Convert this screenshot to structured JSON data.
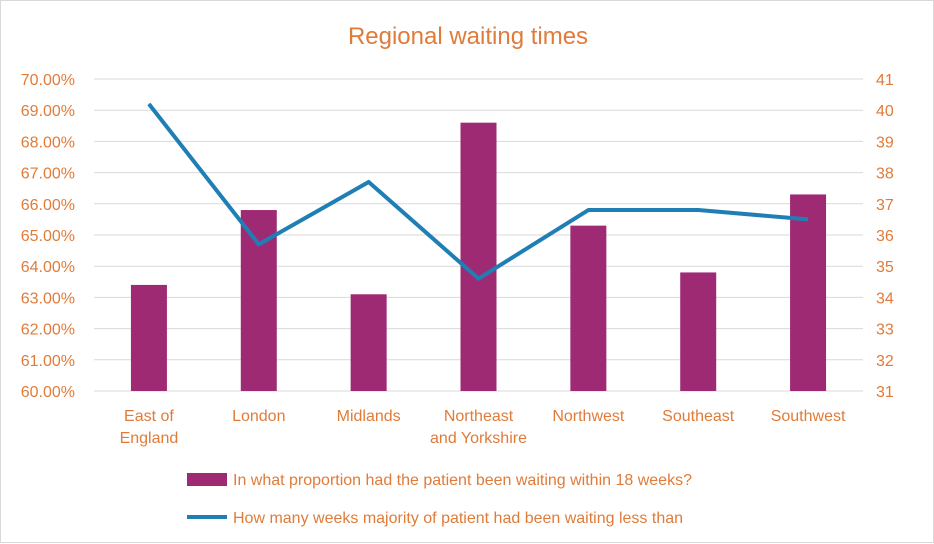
{
  "chart_data": {
    "type": "bar",
    "title": "Regional waiting times",
    "categories": [
      [
        "East of",
        "England"
      ],
      [
        "London"
      ],
      [
        "Midlands"
      ],
      [
        "Northeast",
        "and Yorkshire"
      ],
      [
        "Northwest"
      ],
      [
        "Southeast"
      ],
      [
        "Southwest"
      ]
    ],
    "series": [
      {
        "name": "In what proportion had the patient been waiting within 18 weeks?",
        "kind": "bar",
        "axis": "left",
        "color": "#9e2a74",
        "values": [
          0.634,
          0.658,
          0.631,
          0.686,
          0.653,
          0.638,
          0.663
        ]
      },
      {
        "name": "How many weeks majority of patient had been waiting less than",
        "kind": "line",
        "axis": "right",
        "color": "#1f7fb4",
        "values": [
          40.2,
          35.7,
          37.7,
          34.6,
          36.8,
          36.8,
          36.5
        ]
      }
    ],
    "y_left": {
      "min": 0.6,
      "max": 0.7,
      "ticks": [
        "60.00%",
        "61.00%",
        "62.00%",
        "63.00%",
        "64.00%",
        "65.00%",
        "66.00%",
        "67.00%",
        "68.00%",
        "69.00%",
        "70.00%"
      ]
    },
    "y_right": {
      "min": 31,
      "max": 41,
      "ticks": [
        "31",
        "32",
        "33",
        "34",
        "35",
        "36",
        "37",
        "38",
        "39",
        "40",
        "41"
      ]
    },
    "grid": true,
    "legend_position": "bottom",
    "colors": {
      "text": "#e07b39",
      "grid": "#d9d9d9"
    }
  }
}
